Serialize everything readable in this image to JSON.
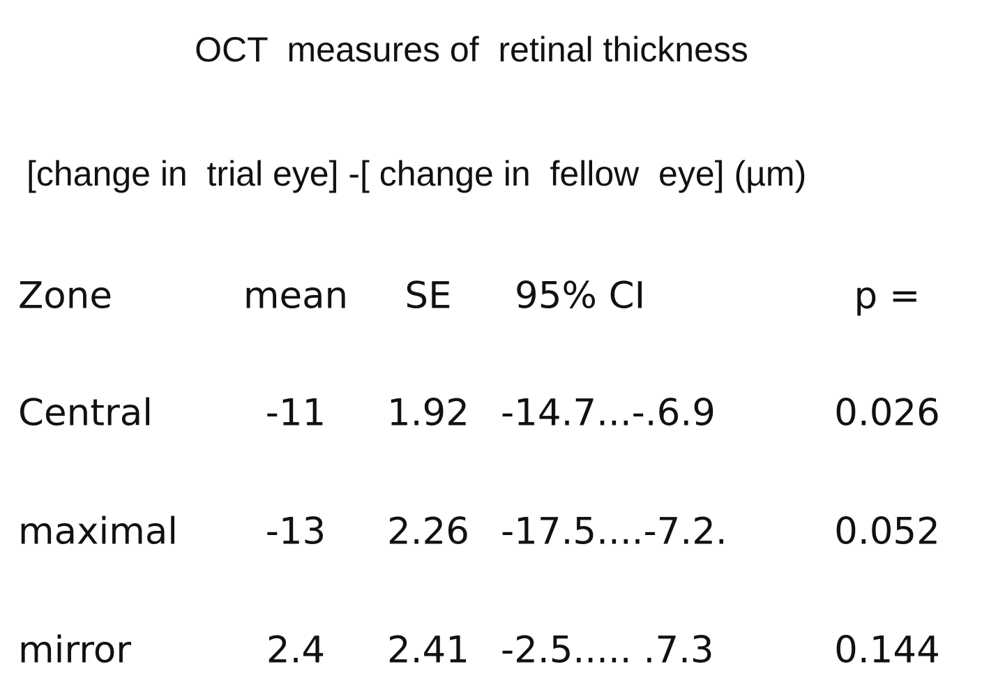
{
  "header": {
    "title": "OCT  measures of  retinal thickness",
    "subtitle": "[change in  trial eye] -[ change in  fellow  eye] (µm)"
  },
  "table": {
    "columns": [
      "Zone",
      "mean",
      "SE",
      "95% CI",
      "p ="
    ],
    "rows": [
      [
        "Central",
        "-11",
        "1.92",
        "-14.7...-.6.9",
        "0.026"
      ],
      [
        "maximal",
        "-13",
        "2.26",
        "-17.5....-7.2.",
        "0.052"
      ],
      [
        "mirror",
        "2.4",
        "2.41",
        "-2.5..... .7.3",
        "0.144"
      ]
    ]
  }
}
